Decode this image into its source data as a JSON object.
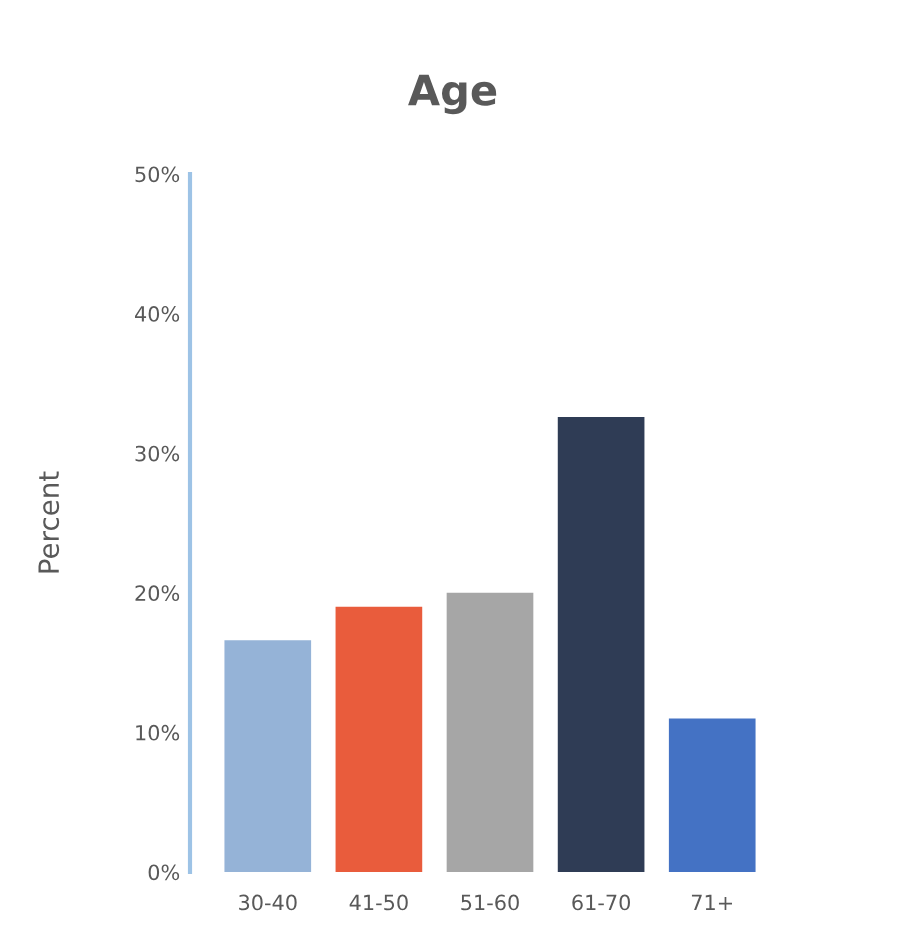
{
  "chart_data": {
    "type": "bar",
    "title": "Age",
    "ylabel": "Percent",
    "categories": [
      "30-40",
      "41-50",
      "51-60",
      "61-70",
      "71+"
    ],
    "values": [
      16.6,
      19.0,
      20.0,
      32.6,
      11.0
    ],
    "colors": [
      "#95b3d7",
      "#e95c3c",
      "#a6a6a6",
      "#2f3c55",
      "#4472c4"
    ],
    "ylim": [
      0,
      50
    ],
    "yticks": [
      {
        "value": 0,
        "label": "0%"
      },
      {
        "value": 10,
        "label": "10%"
      },
      {
        "value": 20,
        "label": "20%"
      },
      {
        "value": 30,
        "label": "30%"
      },
      {
        "value": 40,
        "label": "40%"
      },
      {
        "value": 50,
        "label": "50%"
      }
    ],
    "grid": false,
    "legend": false
  }
}
